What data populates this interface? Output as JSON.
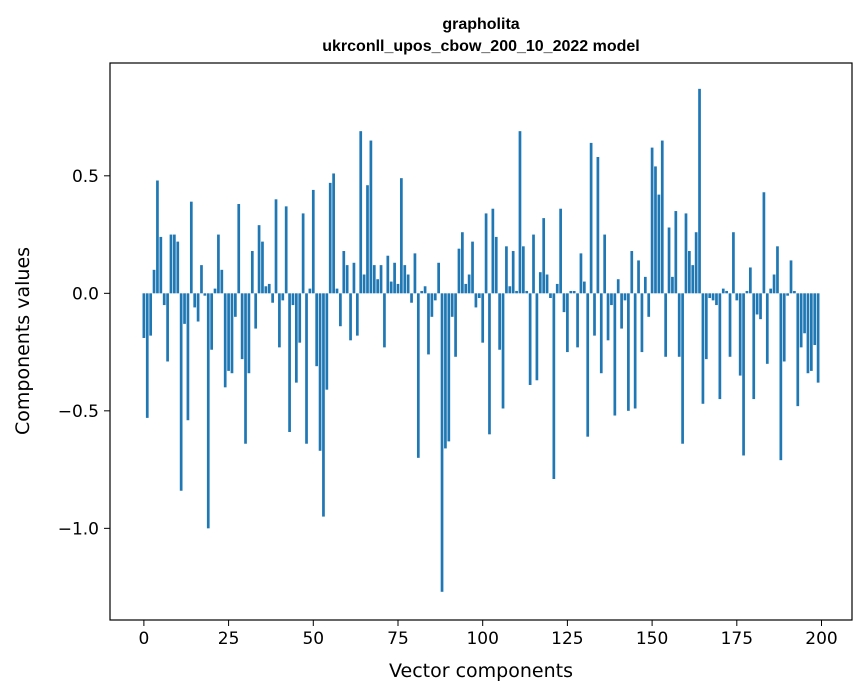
{
  "chart_data": {
    "type": "bar",
    "title": "grapholita",
    "subtitle": "ukrconll_upos_cbow_200_10_2022 model",
    "xlabel": "Vector components",
    "ylabel": "Components values",
    "xlim": [
      -10,
      209
    ],
    "ylim": [
      -1.39,
      0.98
    ],
    "xticks": [
      0,
      25,
      50,
      75,
      100,
      125,
      150,
      175,
      200
    ],
    "xtick_labels": [
      "0",
      "25",
      "50",
      "75",
      "100",
      "125",
      "150",
      "175",
      "200"
    ],
    "yticks": [
      -1.0,
      -0.5,
      0.0,
      0.5
    ],
    "ytick_labels": [
      "−1.0",
      "−0.5",
      "0.0",
      "0.5"
    ],
    "bar_color": "#1f77b4",
    "grid": false,
    "values": [
      -0.19,
      -0.53,
      -0.18,
      0.1,
      0.48,
      0.24,
      -0.05,
      -0.29,
      0.25,
      0.25,
      0.22,
      -0.84,
      -0.13,
      -0.54,
      0.39,
      -0.06,
      -0.12,
      0.12,
      -0.01,
      -1.0,
      -0.24,
      0.02,
      0.25,
      0.1,
      -0.4,
      -0.33,
      -0.34,
      -0.1,
      0.38,
      -0.28,
      -0.64,
      -0.34,
      0.18,
      -0.15,
      0.29,
      0.22,
      0.03,
      0.04,
      -0.04,
      0.4,
      -0.23,
      -0.03,
      0.37,
      -0.59,
      -0.05,
      -0.38,
      -0.21,
      0.34,
      -0.64,
      0.02,
      0.44,
      -0.31,
      -0.67,
      -0.95,
      -0.41,
      0.47,
      0.51,
      0.02,
      -0.14,
      0.18,
      0.12,
      -0.2,
      0.13,
      -0.18,
      0.69,
      0.08,
      0.46,
      0.65,
      0.12,
      0.06,
      0.12,
      -0.23,
      0.16,
      0.05,
      0.13,
      0.04,
      0.49,
      0.12,
      0.08,
      -0.04,
      0.17,
      -0.7,
      0.01,
      0.03,
      -0.26,
      -0.1,
      -0.03,
      0.13,
      -1.27,
      -0.66,
      -0.63,
      -0.1,
      -0.27,
      0.19,
      0.26,
      0.04,
      0.08,
      0.22,
      -0.06,
      -0.02,
      -0.21,
      0.34,
      -0.6,
      0.36,
      0.24,
      -0.24,
      -0.49,
      0.2,
      0.03,
      0.18,
      0.01,
      0.69,
      0.2,
      0.01,
      -0.39,
      0.25,
      -0.37,
      0.09,
      0.32,
      0.08,
      -0.02,
      -0.79,
      0.04,
      0.36,
      -0.08,
      -0.25,
      0.01,
      0.01,
      -0.23,
      0.17,
      0.05,
      -0.61,
      0.64,
      -0.18,
      0.58,
      -0.34,
      0.25,
      -0.2,
      -0.05,
      -0.52,
      0.06,
      -0.15,
      -0.03,
      -0.5,
      0.18,
      -0.49,
      0.14,
      -0.25,
      0.07,
      -0.1,
      0.62,
      0.54,
      0.42,
      0.65,
      -0.27,
      0.28,
      0.07,
      0.35,
      -0.27,
      -0.64,
      0.34,
      0.18,
      0.12,
      0.26,
      0.87,
      -0.47,
      -0.28,
      -0.02,
      -0.03,
      -0.05,
      -0.45,
      0.02,
      0.01,
      -0.27,
      0.26,
      -0.03,
      -0.35,
      -0.69,
      0.01,
      0.11,
      -0.45,
      -0.09,
      -0.11,
      0.43,
      -0.3,
      0.02,
      0.08,
      0.2,
      -0.71,
      -0.29,
      -0.01,
      0.14,
      0.01,
      -0.48,
      -0.23,
      -0.17,
      -0.34,
      -0.33,
      -0.22,
      -0.38
    ]
  }
}
